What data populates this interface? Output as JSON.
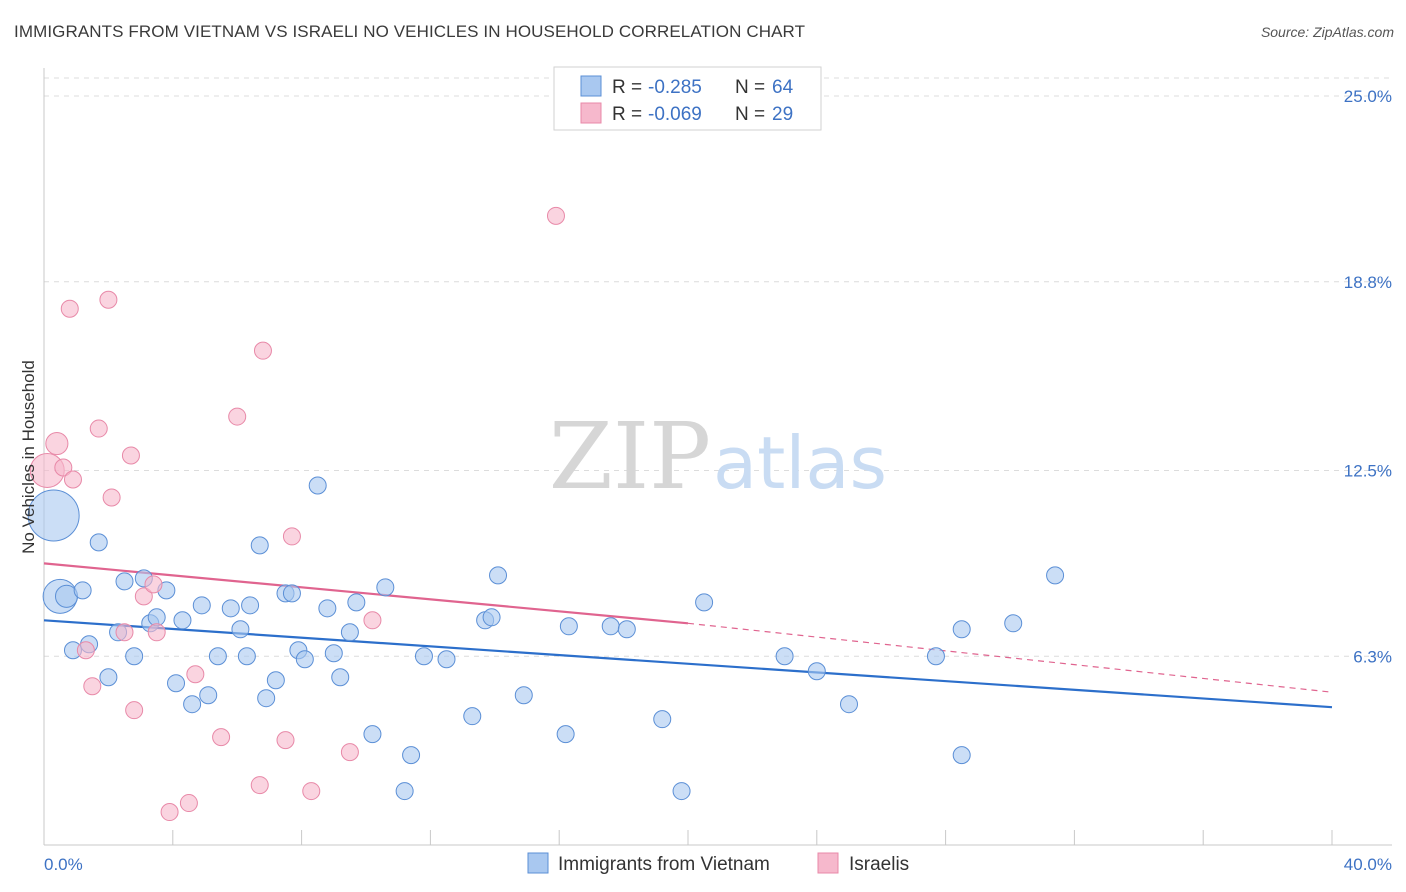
{
  "title": "IMMIGRANTS FROM VIETNAM VS ISRAELI NO VEHICLES IN HOUSEHOLD CORRELATION CHART",
  "source": "Source: ZipAtlas.com",
  "watermark": {
    "zip": "ZIP",
    "atlas": "atlas"
  },
  "colors": {
    "blue_fill": "#a9c8f0",
    "blue_stroke": "#5b8fd6",
    "blue_line": "#2c6fcb",
    "pink_fill": "#f6b8cc",
    "pink_stroke": "#e889a8",
    "pink_line": "#e0648f",
    "grid": "#dcdcdc",
    "accent_text": "#3d72c4"
  },
  "legend": {
    "rows": [
      {
        "r_label": "R =",
        "r_value": "-0.285",
        "n_label": "N =",
        "n_value": "64"
      },
      {
        "r_label": "R =",
        "r_value": "-0.069",
        "n_label": "N =",
        "n_value": "29"
      }
    ]
  },
  "bottom_legend": [
    "Immigrants from Vietnam",
    "Israelis"
  ],
  "chart_data": {
    "type": "scatter",
    "title": "IMMIGRANTS FROM VIETNAM VS ISRAELI NO VEHICLES IN HOUSEHOLD CORRELATION CHART",
    "xlabel": "",
    "ylabel": "No Vehicles in Household",
    "xlim": [
      0,
      40
    ],
    "ylim": [
      0,
      25
    ],
    "x_tick_labels": [
      "0.0%",
      "40.0%"
    ],
    "y_ticks": [
      6.3,
      12.5,
      18.8,
      25.0
    ],
    "y_tick_labels": [
      "6.3%",
      "12.5%",
      "18.8%",
      "25.0%"
    ],
    "grid": true,
    "legend_position": "top-center",
    "series": [
      {
        "name": "Immigrants from Vietnam",
        "points": [
          [
            0.3,
            11.0,
            3
          ],
          [
            0.5,
            8.3,
            2
          ],
          [
            0.7,
            8.3,
            1.3
          ],
          [
            0.9,
            6.5,
            1
          ],
          [
            1.2,
            8.5,
            1
          ],
          [
            1.4,
            6.7,
            1
          ],
          [
            1.7,
            10.1,
            1
          ],
          [
            2.0,
            5.6,
            1
          ],
          [
            2.3,
            7.1,
            1
          ],
          [
            2.5,
            8.8,
            1
          ],
          [
            2.8,
            6.3,
            1
          ],
          [
            3.1,
            8.9,
            1
          ],
          [
            3.3,
            7.4,
            1
          ],
          [
            3.5,
            7.6,
            1
          ],
          [
            3.8,
            8.5,
            1
          ],
          [
            4.1,
            5.4,
            1
          ],
          [
            4.3,
            7.5,
            1
          ],
          [
            4.6,
            4.7,
            1
          ],
          [
            4.9,
            8.0,
            1
          ],
          [
            5.1,
            5.0,
            1
          ],
          [
            5.4,
            6.3,
            1
          ],
          [
            5.8,
            7.9,
            1
          ],
          [
            6.1,
            7.2,
            1
          ],
          [
            6.3,
            6.3,
            1
          ],
          [
            6.4,
            8.0,
            1
          ],
          [
            6.7,
            10.0,
            1
          ],
          [
            6.9,
            4.9,
            1
          ],
          [
            7.2,
            5.5,
            1
          ],
          [
            7.5,
            8.4,
            1
          ],
          [
            7.7,
            8.4,
            1
          ],
          [
            7.9,
            6.5,
            1
          ],
          [
            8.1,
            6.2,
            1
          ],
          [
            8.5,
            12.0,
            1
          ],
          [
            8.8,
            7.9,
            1
          ],
          [
            9.0,
            6.4,
            1
          ],
          [
            9.2,
            5.6,
            1
          ],
          [
            9.5,
            7.1,
            1
          ],
          [
            9.7,
            8.1,
            1
          ],
          [
            10.2,
            3.7,
            1
          ],
          [
            10.6,
            8.6,
            1
          ],
          [
            11.2,
            1.8,
            1
          ],
          [
            11.4,
            3.0,
            1
          ],
          [
            11.8,
            6.3,
            1
          ],
          [
            12.5,
            6.2,
            1
          ],
          [
            13.3,
            4.3,
            1
          ],
          [
            13.7,
            7.5,
            1
          ],
          [
            13.9,
            7.6,
            1
          ],
          [
            14.1,
            9.0,
            1
          ],
          [
            14.9,
            5.0,
            1
          ],
          [
            16.2,
            3.7,
            1
          ],
          [
            16.3,
            7.3,
            1
          ],
          [
            17.6,
            7.3,
            1
          ],
          [
            18.1,
            7.2,
            1
          ],
          [
            19.2,
            4.2,
            1
          ],
          [
            19.8,
            1.8,
            1
          ],
          [
            20.5,
            8.1,
            1
          ],
          [
            23.0,
            6.3,
            1
          ],
          [
            24.0,
            5.8,
            1
          ],
          [
            25.0,
            4.7,
            1
          ],
          [
            27.7,
            6.3,
            1
          ],
          [
            28.5,
            3.0,
            1
          ],
          [
            28.5,
            7.2,
            1
          ],
          [
            30.1,
            7.4,
            1
          ],
          [
            31.4,
            9.0,
            1
          ]
        ]
      },
      {
        "name": "Israelis",
        "points": [
          [
            0.1,
            12.5,
            2
          ],
          [
            0.4,
            13.4,
            1.3
          ],
          [
            0.6,
            12.6,
            1
          ],
          [
            0.8,
            17.9,
            1
          ],
          [
            0.9,
            12.2,
            1
          ],
          [
            1.3,
            6.5,
            1
          ],
          [
            1.5,
            5.3,
            1
          ],
          [
            1.7,
            13.9,
            1
          ],
          [
            2.0,
            18.2,
            1
          ],
          [
            2.1,
            11.6,
            1
          ],
          [
            2.5,
            7.1,
            1
          ],
          [
            2.7,
            13.0,
            1
          ],
          [
            2.8,
            4.5,
            1
          ],
          [
            3.1,
            8.3,
            1
          ],
          [
            3.4,
            8.7,
            1
          ],
          [
            3.5,
            7.1,
            1
          ],
          [
            3.9,
            1.1,
            1
          ],
          [
            4.5,
            1.4,
            1
          ],
          [
            4.7,
            5.7,
            1
          ],
          [
            5.5,
            3.6,
            1
          ],
          [
            6.0,
            14.3,
            1
          ],
          [
            6.7,
            2.0,
            1
          ],
          [
            6.8,
            16.5,
            1
          ],
          [
            7.5,
            3.5,
            1
          ],
          [
            7.7,
            10.3,
            1
          ],
          [
            8.3,
            1.8,
            1
          ],
          [
            9.5,
            3.1,
            1
          ],
          [
            10.2,
            7.5,
            1
          ],
          [
            15.9,
            21.0,
            1
          ]
        ]
      }
    ],
    "trend_lines": [
      {
        "series": "Immigrants from Vietnam",
        "x": [
          0,
          40
        ],
        "y": [
          7.5,
          4.6
        ]
      },
      {
        "series": "Israelis",
        "x": [
          0,
          20
        ],
        "y": [
          9.4,
          7.4
        ],
        "dashed_to": [
          40,
          5.1
        ]
      }
    ]
  }
}
